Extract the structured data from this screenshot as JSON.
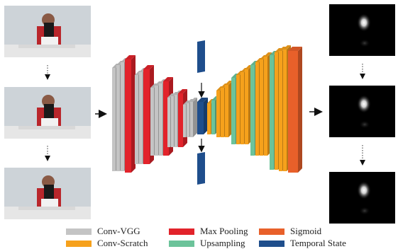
{
  "colors": {
    "conv_vgg": "#c4c4c4",
    "max_pooling": "#e2232b",
    "sigmoid": "#e8602a",
    "conv_scratch": "#f6a11c",
    "upsampling": "#6cc39a",
    "temporal_state": "#1f4e8c"
  },
  "legend": [
    {
      "label": "Conv-VGG",
      "color_key": "conv_vgg"
    },
    {
      "label": "Max Pooling",
      "color_key": "max_pooling"
    },
    {
      "label": "Sigmoid",
      "color_key": "sigmoid"
    },
    {
      "label": "Conv-Scratch",
      "color_key": "conv_scratch"
    },
    {
      "label": "Upsampling",
      "color_key": "upsampling"
    },
    {
      "label": "Temporal State",
      "color_key": "temporal_state"
    }
  ],
  "input_frames": 3,
  "output_maps": 3
}
